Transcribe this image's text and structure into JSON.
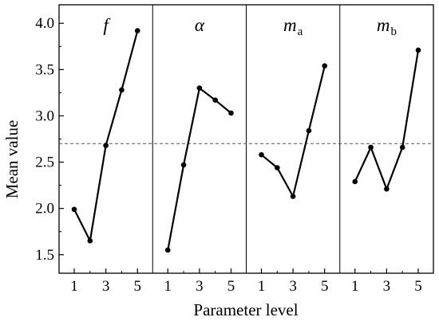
{
  "chart_data": {
    "type": "line",
    "xlabel": "Parameter level",
    "ylabel": "Mean value",
    "ylim": [
      1.3,
      4.2
    ],
    "yticks": [
      1.5,
      2.0,
      2.5,
      3.0,
      3.5,
      4.0
    ],
    "ytick_labels": [
      "1.5",
      "2.0",
      "2.5",
      "3.0",
      "3.5",
      "4.0"
    ],
    "x_major_ticks": [
      1,
      3,
      5
    ],
    "x_minor_ticks": [
      2,
      4
    ],
    "xtick_labels": [
      "1",
      "3",
      "5"
    ],
    "reference_line": {
      "value": 2.7,
      "style": "dashed",
      "color": "#555555"
    },
    "panels": [
      {
        "title": "f",
        "subscript": "",
        "x": [
          1,
          2,
          3,
          4,
          5
        ],
        "values": [
          1.99,
          1.65,
          2.68,
          3.28,
          3.92
        ]
      },
      {
        "title": "α",
        "subscript": "",
        "x": [
          1,
          2,
          3,
          4,
          5
        ],
        "values": [
          1.55,
          2.47,
          3.3,
          3.17,
          3.03
        ]
      },
      {
        "title": "m",
        "subscript": "a",
        "x": [
          1,
          2,
          3,
          4,
          5
        ],
        "values": [
          2.58,
          2.44,
          2.13,
          2.84,
          3.54
        ]
      },
      {
        "title": "m",
        "subscript": "b",
        "x": [
          1,
          2,
          3,
          4,
          5
        ],
        "values": [
          2.29,
          2.66,
          2.21,
          2.66,
          3.71
        ]
      }
    ]
  }
}
